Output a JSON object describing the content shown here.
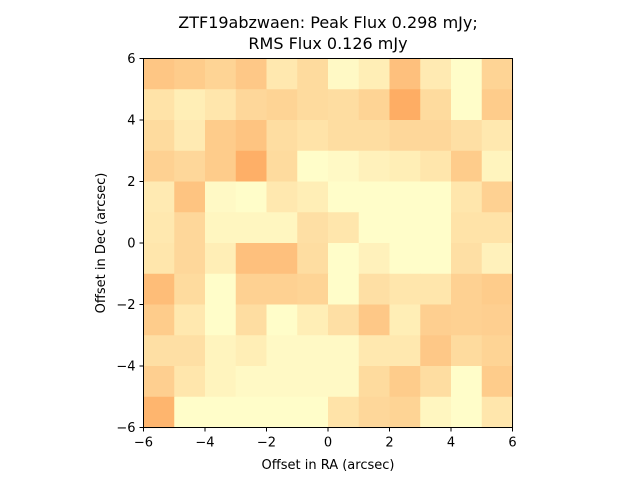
{
  "chart_data": {
    "type": "heatmap",
    "title_line1": "ZTF19abzwaen: Peak Flux 0.298 mJy;",
    "title_line2": "RMS Flux 0.126 mJy",
    "xlabel": "Offset in RA (arcsec)",
    "ylabel": "Offset in Dec (arcsec)",
    "xlim": [
      -6,
      6
    ],
    "ylim": [
      -6,
      6
    ],
    "x_ticks": [
      -6,
      -4,
      -2,
      0,
      2,
      4,
      6
    ],
    "y_ticks": [
      -6,
      -4,
      -2,
      0,
      2,
      4,
      6
    ],
    "x_tick_labels": [
      "−6",
      "−4",
      "−2",
      "0",
      "2",
      "4",
      "6"
    ],
    "y_tick_labels": [
      "−6",
      "−4",
      "−2",
      "0",
      "2",
      "4",
      "6"
    ],
    "grid": false,
    "colormap_low": "#ffffcc",
    "colormap_high": "#fd8d3c",
    "value_range": [
      0,
      1
    ],
    "cells": [
      [
        0.5,
        0.45,
        0.38,
        0.48,
        0.2,
        0.32,
        0.05,
        0.15,
        0.55,
        0.18,
        0.02,
        0.38
      ],
      [
        0.25,
        0.15,
        0.22,
        0.35,
        0.38,
        0.32,
        0.3,
        0.38,
        0.72,
        0.32,
        0.02,
        0.45
      ],
      [
        0.32,
        0.18,
        0.45,
        0.52,
        0.3,
        0.25,
        0.3,
        0.3,
        0.35,
        0.35,
        0.28,
        0.2
      ],
      [
        0.4,
        0.35,
        0.45,
        0.7,
        0.32,
        0.02,
        0.05,
        0.12,
        0.15,
        0.22,
        0.45,
        0.1
      ],
      [
        0.18,
        0.52,
        0.05,
        0.02,
        0.2,
        0.15,
        0.02,
        0.02,
        0.02,
        0.02,
        0.22,
        0.4
      ],
      [
        0.2,
        0.35,
        0.08,
        0.08,
        0.08,
        0.28,
        0.22,
        0.02,
        0.02,
        0.02,
        0.25,
        0.25
      ],
      [
        0.22,
        0.35,
        0.15,
        0.55,
        0.55,
        0.3,
        0.02,
        0.12,
        0.02,
        0.02,
        0.28,
        0.12
      ],
      [
        0.58,
        0.32,
        0.02,
        0.4,
        0.4,
        0.38,
        0.02,
        0.28,
        0.22,
        0.22,
        0.4,
        0.45
      ],
      [
        0.45,
        0.2,
        0.02,
        0.3,
        0.02,
        0.15,
        0.28,
        0.48,
        0.15,
        0.42,
        0.4,
        0.42
      ],
      [
        0.28,
        0.28,
        0.1,
        0.15,
        0.05,
        0.05,
        0.05,
        0.2,
        0.2,
        0.48,
        0.32,
        0.38
      ],
      [
        0.42,
        0.22,
        0.1,
        0.05,
        0.05,
        0.05,
        0.05,
        0.32,
        0.45,
        0.3,
        0.02,
        0.45
      ],
      [
        0.65,
        0.02,
        0.02,
        0.02,
        0.02,
        0.02,
        0.25,
        0.35,
        0.38,
        0.08,
        0.02,
        0.22
      ]
    ]
  }
}
